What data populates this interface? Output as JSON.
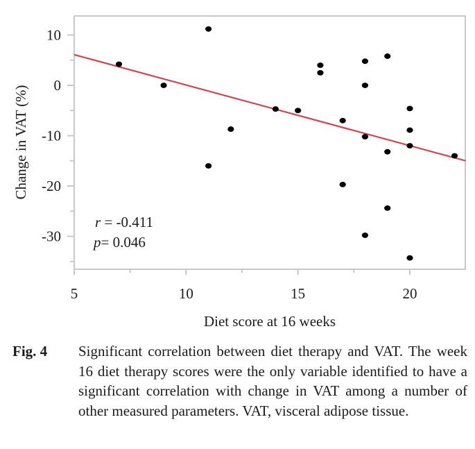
{
  "chart_data": {
    "type": "scatter",
    "xlabel": "Diet score at 16 weeks",
    "ylabel": "Change in VAT (%)",
    "xlim": [
      5,
      22.5
    ],
    "ylim": [
      -36.5,
      14
    ],
    "x_ticks": [
      5,
      10,
      15,
      20
    ],
    "x_tick_labels": [
      "5",
      "10",
      "15",
      "20"
    ],
    "x_minor_ticks": [
      7.5,
      12.5,
      17.5
    ],
    "y_ticks": [
      10,
      0,
      -10,
      -20,
      -30
    ],
    "y_tick_labels": [
      "10",
      "0",
      "-10",
      "-20",
      "-30"
    ],
    "y_minor_ticks": [
      5,
      -5,
      -15,
      -25,
      -35
    ],
    "grid": false,
    "points": [
      {
        "x": 7,
        "y": 4.2
      },
      {
        "x": 9,
        "y": 0
      },
      {
        "x": 11,
        "y": 11.2
      },
      {
        "x": 11,
        "y": -16
      },
      {
        "x": 12,
        "y": -8.7
      },
      {
        "x": 14,
        "y": -4.7
      },
      {
        "x": 15,
        "y": -5
      },
      {
        "x": 16,
        "y": 4
      },
      {
        "x": 16,
        "y": 2.5
      },
      {
        "x": 17,
        "y": -7
      },
      {
        "x": 17,
        "y": -19.7
      },
      {
        "x": 18,
        "y": 4.8
      },
      {
        "x": 18,
        "y": 0
      },
      {
        "x": 18,
        "y": -10.2
      },
      {
        "x": 18,
        "y": -29.8
      },
      {
        "x": 19,
        "y": 5.8
      },
      {
        "x": 19,
        "y": -13.2
      },
      {
        "x": 19,
        "y": -24.4
      },
      {
        "x": 20,
        "y": -4.6
      },
      {
        "x": 20,
        "y": -8.9
      },
      {
        "x": 20,
        "y": -12
      },
      {
        "x": 20,
        "y": -34.3
      },
      {
        "x": 22,
        "y": -14
      }
    ],
    "regression_line": {
      "x": [
        5,
        22.5
      ],
      "y": [
        6.1,
        -15.0
      ],
      "color": "#d0454f"
    },
    "annotations": {
      "r_symbol": "r",
      "r_text": " = -0.411",
      "p_symbol": "p",
      "p_text": "= 0.046"
    },
    "point_color": "#000000",
    "frame_color": "#c8c8c8"
  },
  "caption": {
    "label": "Fig. 4",
    "text": "Significant correlation between diet therapy and VAT. The week 16 diet therapy scores were the only variable identified to have a significant correlation with change in VAT among a number of other measured parameters. VAT, visceral adipose tissue."
  }
}
